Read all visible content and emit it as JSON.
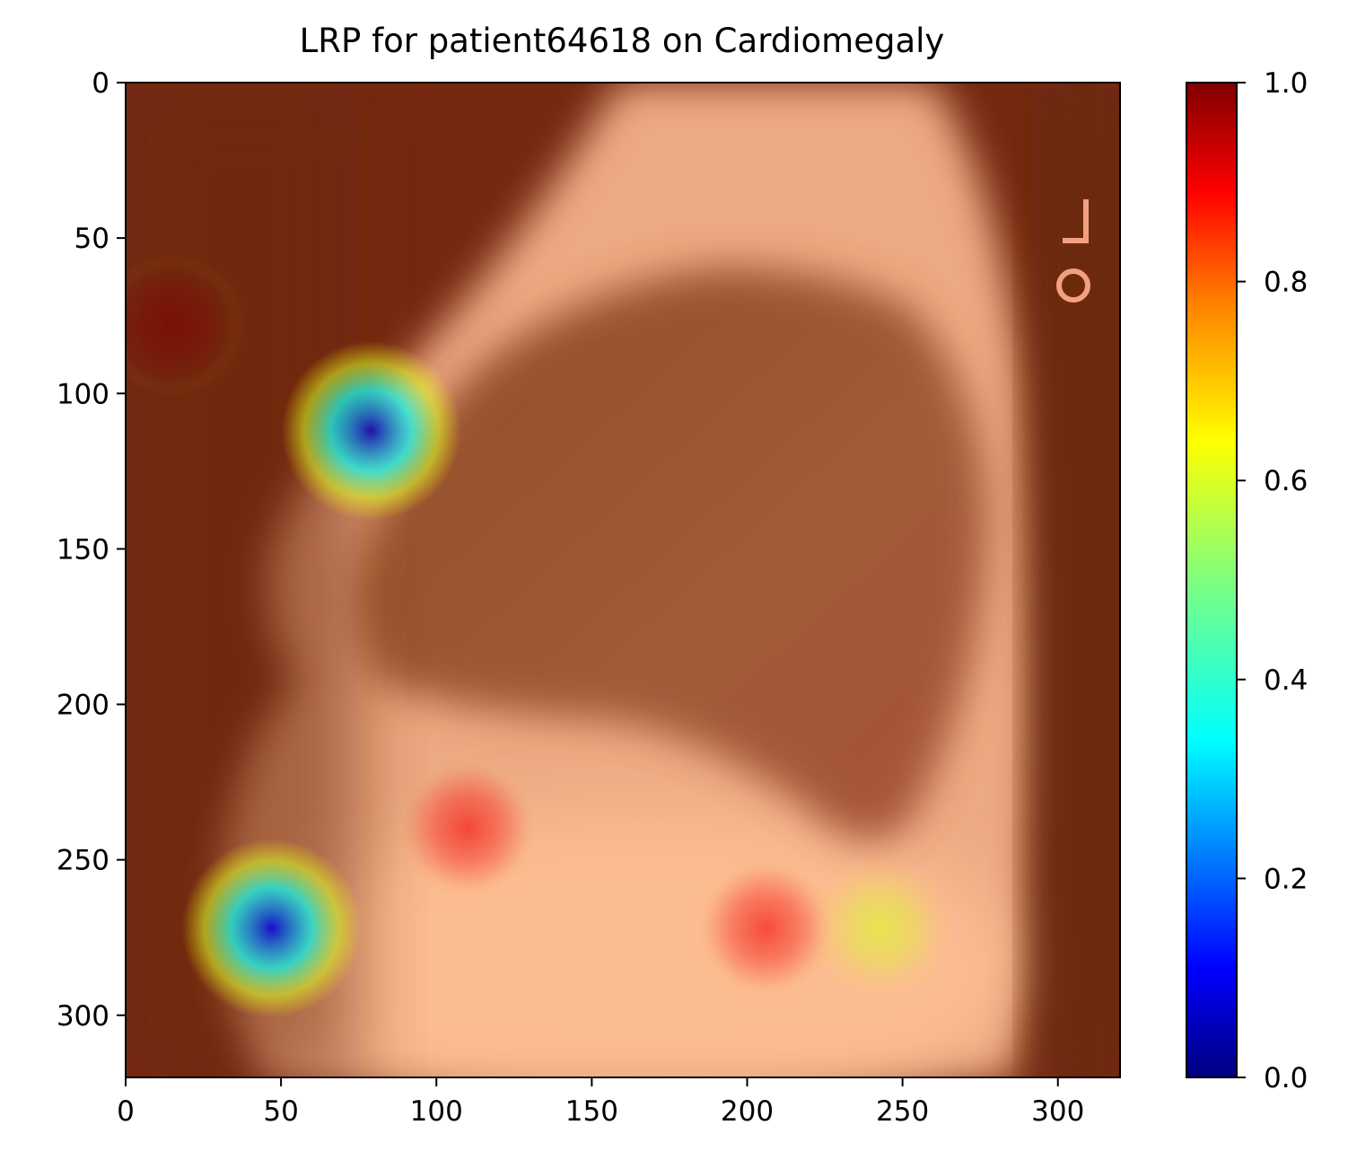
{
  "chart_data": {
    "type": "heatmap",
    "title": "LRP for patient64618 on Cardiomegaly",
    "xlabel": "",
    "ylabel": "",
    "xlim": [
      0,
      320
    ],
    "ylim": [
      320,
      0
    ],
    "x_ticks": [
      0,
      50,
      100,
      150,
      200,
      250,
      300
    ],
    "y_ticks": [
      0,
      50,
      100,
      150,
      200,
      250,
      300
    ],
    "colorbar": {
      "colormap": "jet",
      "range": [
        0.0,
        1.0
      ],
      "ticks": [
        "0.0",
        "0.2",
        "0.4",
        "0.6",
        "0.8",
        "1.0"
      ]
    },
    "background": "lateral chest x-ray with relevance overlay",
    "relevance_hotspots": [
      {
        "x": 79,
        "y": 112,
        "value": 0.05
      },
      {
        "x": 47,
        "y": 272,
        "value": 0.08
      },
      {
        "x": 243,
        "y": 272,
        "value": 0.6
      },
      {
        "x": 206,
        "y": 272,
        "value": 0.9
      },
      {
        "x": 110,
        "y": 240,
        "value": 0.9
      },
      {
        "x": 15,
        "y": 78,
        "value": 1.0
      }
    ],
    "colors": {
      "base_overlay": "#7a2a10",
      "jet": [
        "#00007f",
        "#0000ff",
        "#007fff",
        "#00ffff",
        "#7fff7f",
        "#ffff00",
        "#ff7f00",
        "#ff0000",
        "#7f0000"
      ]
    }
  }
}
